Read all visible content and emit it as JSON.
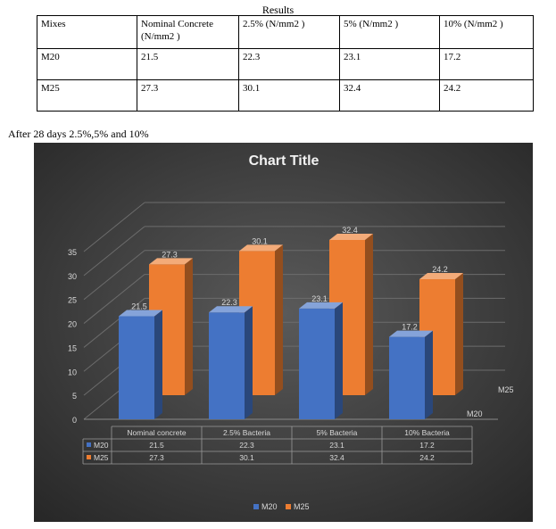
{
  "results_title": "Results",
  "table": {
    "headers": [
      "Mixes",
      "Nominal Concrete (N/mm2 )",
      "2.5% (N/mm2 )",
      "5% (N/mm2 )",
      "10% (N/mm2 )"
    ],
    "rows": [
      [
        "M20",
        "21.5",
        "22.3",
        "23.1",
        "17.2"
      ],
      [
        "M25",
        "27.3",
        "30.1",
        "32.4",
        "24.2"
      ]
    ]
  },
  "caption": "After 28 days 2.5%,5% and 10%",
  "chart_data": {
    "type": "bar",
    "title": "Chart Title",
    "categories": [
      "Nominal concrete",
      "2.5% Bacteria",
      "5% Bacteria",
      "10% Bacteria"
    ],
    "series": [
      {
        "name": "M20",
        "values": [
          21.5,
          22.3,
          23.1,
          17.2
        ],
        "color": "#4472C4"
      },
      {
        "name": "M25",
        "values": [
          27.3,
          30.1,
          32.4,
          24.2
        ],
        "color": "#ED7D31"
      }
    ],
    "ylim": [
      0,
      35
    ],
    "yticks": [
      0,
      5,
      10,
      15,
      20,
      25,
      30,
      35
    ],
    "grid": true,
    "legend": "bottom",
    "data_table": true,
    "background": "#3a3a3a"
  }
}
